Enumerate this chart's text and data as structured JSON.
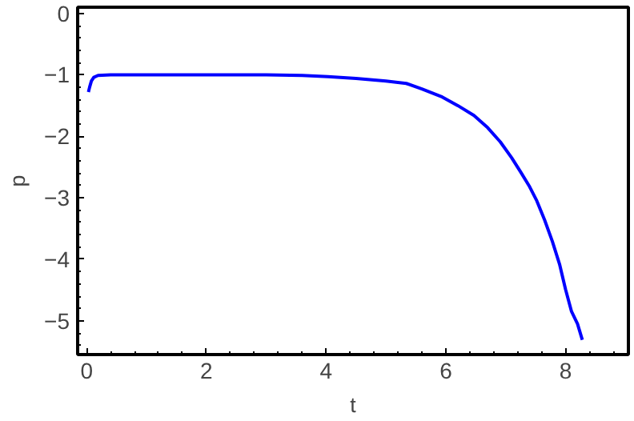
{
  "chart_data": {
    "type": "line",
    "xlabel": "t",
    "ylabel": "p",
    "x": [
      0.03,
      0.05,
      0.08,
      0.12,
      0.19,
      0.4,
      1.0,
      2.0,
      3.0,
      3.6,
      4.03,
      4.5,
      5.0,
      5.34,
      5.6,
      5.94,
      6.2,
      6.47,
      6.7,
      6.91,
      7.1,
      7.25,
      7.4,
      7.52,
      7.65,
      7.78,
      7.9,
      8.0,
      8.1,
      8.2,
      8.28
    ],
    "series": [
      {
        "color": "#0000ff",
        "values": [
          -1.28,
          -1.2,
          -1.1,
          -1.04,
          -1.01,
          -1.0,
          -1.0,
          -1.0,
          -1.0,
          -1.01,
          -1.03,
          -1.06,
          -1.1,
          -1.14,
          -1.23,
          -1.36,
          -1.5,
          -1.66,
          -1.86,
          -2.09,
          -2.35,
          -2.58,
          -2.82,
          -3.05,
          -3.36,
          -3.71,
          -4.08,
          -4.49,
          -4.85,
          -5.05,
          -5.31
        ]
      }
    ],
    "xlim": [
      -0.15,
      9.05
    ],
    "ylim": [
      -5.55,
      0.1
    ],
    "xticks": [
      0,
      2,
      4,
      6,
      8
    ],
    "yticks": [
      0,
      -1,
      -2,
      -3,
      -4,
      -5
    ],
    "grid": false,
    "marker": "none",
    "line_style": "solid"
  }
}
